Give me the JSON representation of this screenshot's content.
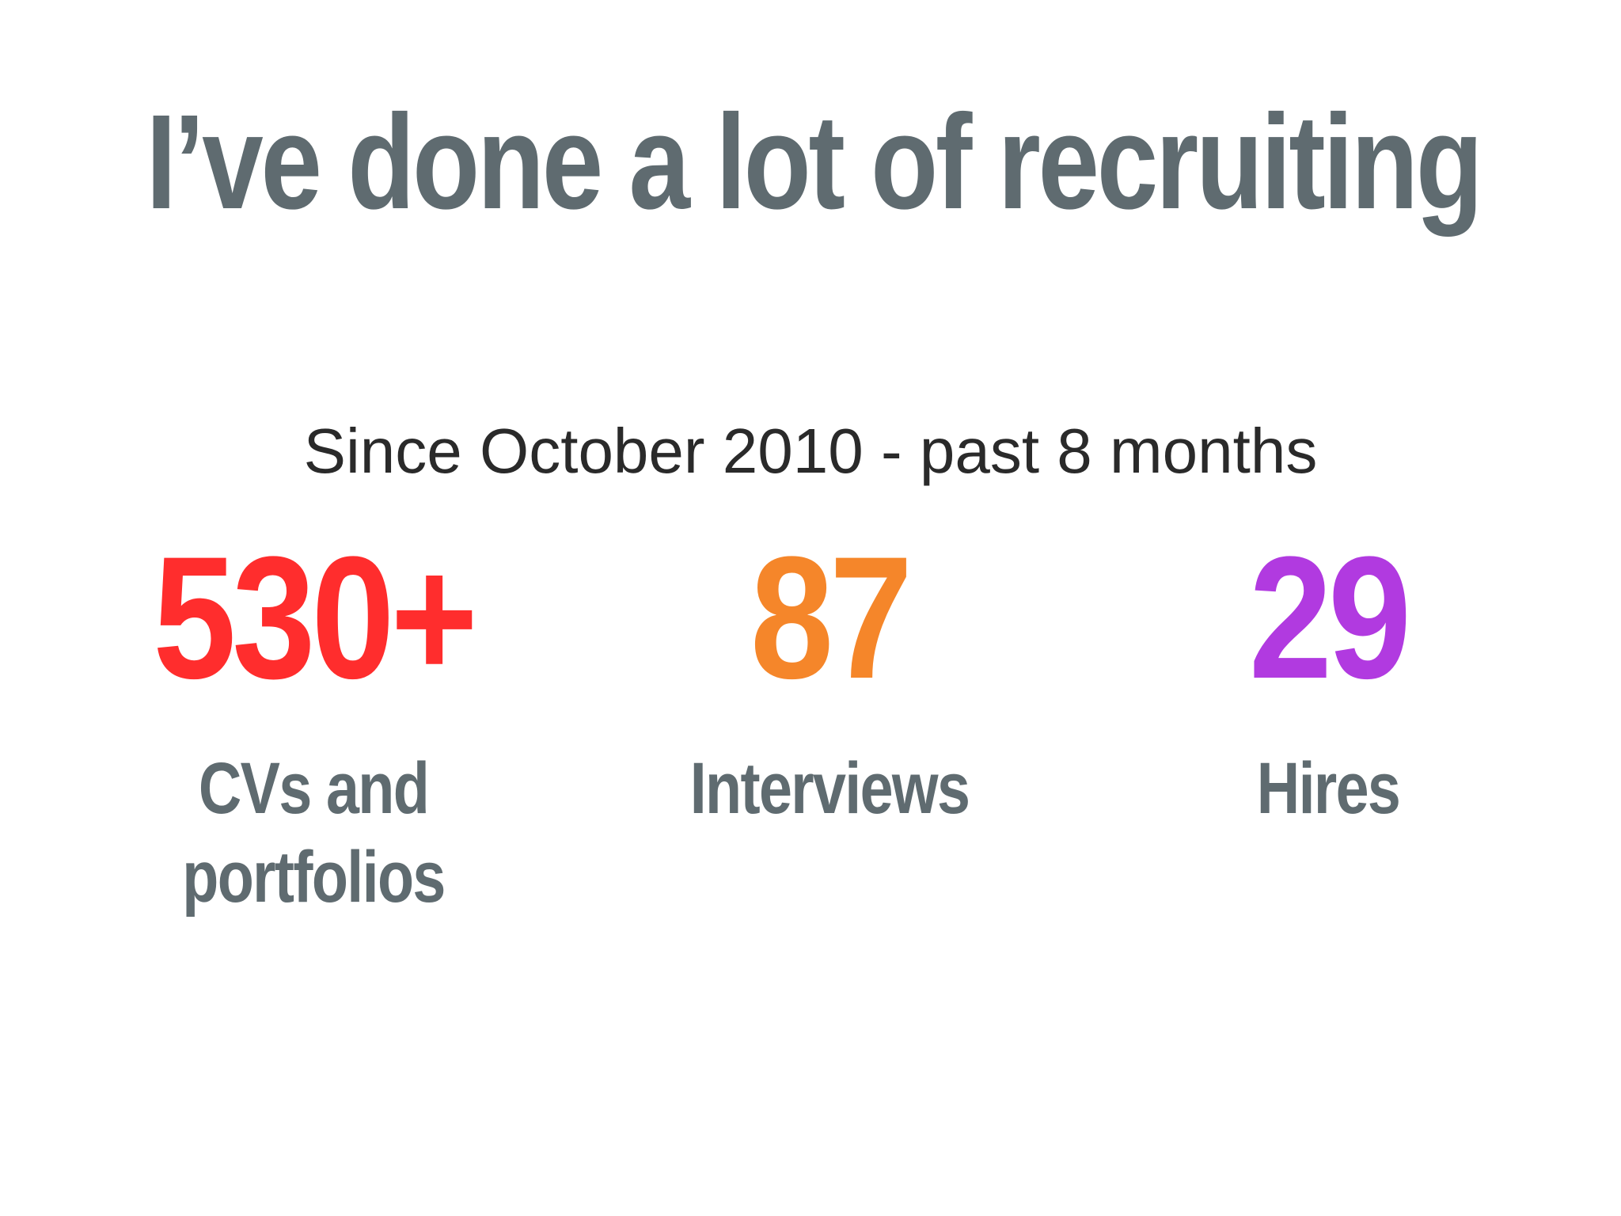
{
  "slide": {
    "title": "I’ve done a lot of recruiting",
    "subtitle": "Since October 2010 - past 8 months",
    "stats": [
      {
        "value": "530+",
        "label": "CVs and portfolios",
        "color": "#ff2d2d"
      },
      {
        "value": "87",
        "label": "Interviews",
        "color": "#f5862a"
      },
      {
        "value": "29",
        "label": "Hires",
        "color": "#b13ae0"
      }
    ],
    "colors": {
      "heading": "#5f6b70",
      "subtitle": "#2a2a2a",
      "background": "#ffffff"
    }
  }
}
